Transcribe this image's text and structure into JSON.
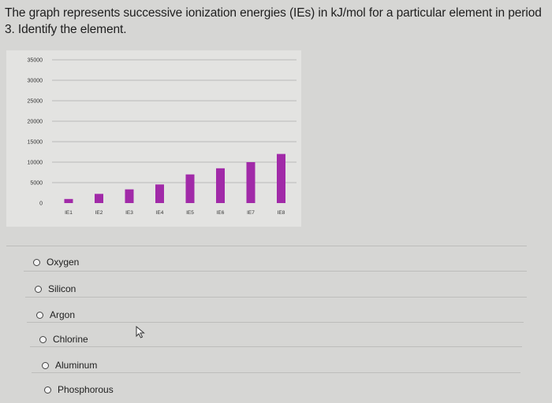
{
  "question": {
    "text": "The graph represents successive ionization energies (IEs) in kJ/mol for a particular element in period 3. Identify the element."
  },
  "chart_data": {
    "type": "bar",
    "categories": [
      "IE1",
      "IE2",
      "IE3",
      "IE4",
      "IE5",
      "IE6",
      "IE7",
      "IE8"
    ],
    "values": [
      1000,
      2250,
      3350,
      4550,
      7000,
      8500,
      10000,
      12000
    ],
    "title": "",
    "xlabel": "",
    "ylabel": "",
    "ylim": [
      0,
      35000
    ],
    "yticks": [
      "0",
      "5000",
      "10000",
      "15000",
      "20000",
      "25000",
      "30000",
      "35000"
    ],
    "grid": true,
    "bar_color": "#a12aa8"
  },
  "options": [
    {
      "label": "Oxygen"
    },
    {
      "label": "Silicon"
    },
    {
      "label": "Argon"
    },
    {
      "label": "Chlorine"
    },
    {
      "label": "Aluminum"
    },
    {
      "label": "Phosphorous"
    }
  ],
  "icons": {
    "cursor": "mouse-pointer-icon"
  }
}
